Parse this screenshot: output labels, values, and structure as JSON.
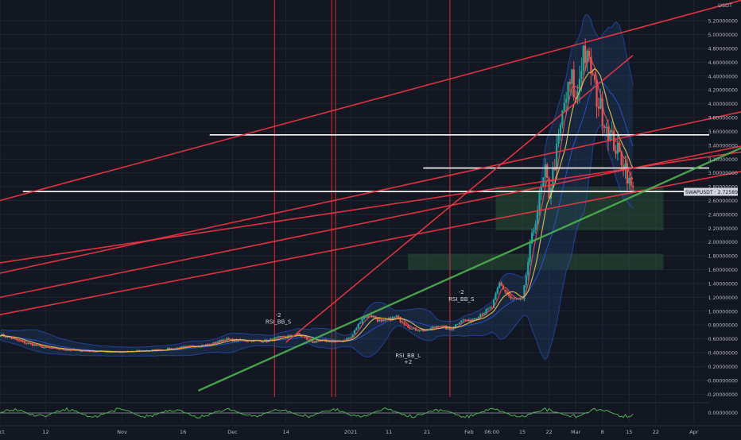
{
  "theme": {
    "background": "#131722",
    "grid": "#1f2433",
    "axis_text": "#b2b5be",
    "up_candle": "#26a69a",
    "down_candle": "#ef5350",
    "ma_fast": "#ef5350",
    "ma_slow": "#f0c94d",
    "band_line": "#2962ff",
    "band_fill": "#1e3a5f",
    "trendline_red": "#f23645",
    "trendline_green": "#4caf50",
    "level_white": "#ffffff",
    "zone_green": "#2e5e3a",
    "vertical_red": "#d32f2f",
    "oscillator": "#4caf50",
    "price_label_bg": "#d1d4dc"
  },
  "chart_data": {
    "type": "candlestick",
    "symbol": "SWAPUSDT",
    "currency_label": "USDT",
    "last_price_label": "2.72589677",
    "last_price": 2.7259,
    "ylim": [
      -0.3,
      5.5
    ],
    "y_ticks": [
      "5.20000000",
      "5.00000000",
      "4.80000000",
      "4.60000000",
      "4.40000000",
      "4.20000000",
      "4.00000000",
      "3.80000000",
      "3.60000000",
      "3.40000000",
      "3.20000000",
      "3.00000000",
      "2.80000000",
      "2.60000000",
      "2.40000000",
      "2.20000000",
      "2.00000000",
      "1.80000000",
      "1.60000000",
      "1.40000000",
      "1.20000000",
      "1.00000000",
      "0.80000000",
      "0.60000000",
      "0.40000000",
      "0.20000000",
      "-0.00000000",
      "-0.20000000"
    ],
    "x_ticks": [
      "Oct",
      "12",
      "Nov",
      "16",
      "Dec",
      "14",
      "2021",
      "11",
      "21",
      "Feb",
      "06:00",
      "15",
      "22",
      "Mar",
      "8",
      "15",
      "22",
      "Apr"
    ],
    "x_tick_days": [
      0,
      12,
      32,
      48,
      61,
      75,
      92,
      102,
      112,
      123,
      129,
      137,
      144,
      151,
      158,
      165,
      172,
      182
    ],
    "price_keyframes": [
      [
        0,
        0.66
      ],
      [
        6,
        0.55
      ],
      [
        12,
        0.47
      ],
      [
        20,
        0.43
      ],
      [
        32,
        0.41
      ],
      [
        42,
        0.44
      ],
      [
        48,
        0.48
      ],
      [
        55,
        0.52
      ],
      [
        59,
        0.6
      ],
      [
        61,
        0.58
      ],
      [
        70,
        0.57
      ],
      [
        73,
        0.62
      ],
      [
        75,
        0.63
      ],
      [
        78,
        0.67
      ],
      [
        82,
        0.55
      ],
      [
        85,
        0.58
      ],
      [
        88,
        0.55
      ],
      [
        92,
        0.62
      ],
      [
        95,
        0.9
      ],
      [
        97,
        0.95
      ],
      [
        100,
        0.84
      ],
      [
        104,
        0.92
      ],
      [
        108,
        0.74
      ],
      [
        112,
        0.72
      ],
      [
        115,
        0.8
      ],
      [
        118,
        0.73
      ],
      [
        121,
        0.88
      ],
      [
        123,
        0.85
      ],
      [
        126,
        0.96
      ],
      [
        129,
        1.05
      ],
      [
        131,
        1.4
      ],
      [
        134,
        1.18
      ],
      [
        137,
        1.15
      ],
      [
        139,
        1.9
      ],
      [
        141,
        2.5
      ],
      [
        143,
        3.0
      ],
      [
        144,
        2.7
      ],
      [
        146,
        3.3
      ],
      [
        148,
        4.0
      ],
      [
        150,
        4.35
      ],
      [
        151,
        4.0
      ],
      [
        152,
        4.4
      ],
      [
        153,
        4.8
      ],
      [
        154,
        4.6
      ],
      [
        155,
        4.5
      ],
      [
        156,
        4.2
      ],
      [
        157,
        4.0
      ],
      [
        158,
        3.85
      ],
      [
        160,
        3.55
      ],
      [
        162,
        3.3
      ],
      [
        164,
        3.1
      ],
      [
        165,
        2.85
      ],
      [
        166,
        2.73
      ]
    ],
    "annotations": [
      {
        "text": "-2",
        "day": 73,
        "price": 0.92
      },
      {
        "text": "RSI_BB_S",
        "day": 73,
        "price": 0.82
      },
      {
        "text": "-2",
        "day": 121,
        "price": 1.25
      },
      {
        "text": "RSI_BB_S",
        "day": 121,
        "price": 1.15
      },
      {
        "text": "RSI_BB_L",
        "day": 107,
        "price": 0.33
      },
      {
        "text": "+2",
        "day": 107,
        "price": 0.24
      }
    ],
    "vertical_markers_days": [
      72,
      87,
      88,
      118
    ],
    "horizontal_levels": [
      {
        "from_day": 55,
        "price": 3.55
      },
      {
        "from_day": 111,
        "price": 3.07
      },
      {
        "from_day": 6,
        "price": 2.73
      }
    ],
    "zones": [
      {
        "from_day": 130,
        "to_day": 174,
        "low": 2.17,
        "high": 2.8
      },
      {
        "from_day": 107,
        "to_day": 174,
        "low": 1.6,
        "high": 1.83
      }
    ],
    "trendlines": [
      {
        "color": "red",
        "points": [
          [
            0,
            2.6
          ],
          [
            200,
            5.58
          ]
        ]
      },
      {
        "color": "red",
        "points": [
          [
            0,
            0.95
          ],
          [
            200,
            3.08
          ]
        ]
      },
      {
        "color": "red",
        "points": [
          [
            0,
            1.2
          ],
          [
            200,
            3.45
          ]
        ]
      },
      {
        "color": "red",
        "points": [
          [
            0,
            1.55
          ],
          [
            200,
            3.95
          ]
        ]
      },
      {
        "color": "red",
        "points": [
          [
            0,
            1.7
          ],
          [
            200,
            3.35
          ]
        ]
      },
      {
        "color": "red",
        "points": [
          [
            75,
            0.55
          ],
          [
            166,
            4.7
          ]
        ]
      },
      {
        "color": "green",
        "points": [
          [
            52,
            -0.15
          ],
          [
            200,
            3.5
          ]
        ]
      }
    ],
    "oscillator_label": "0.00000000"
  }
}
